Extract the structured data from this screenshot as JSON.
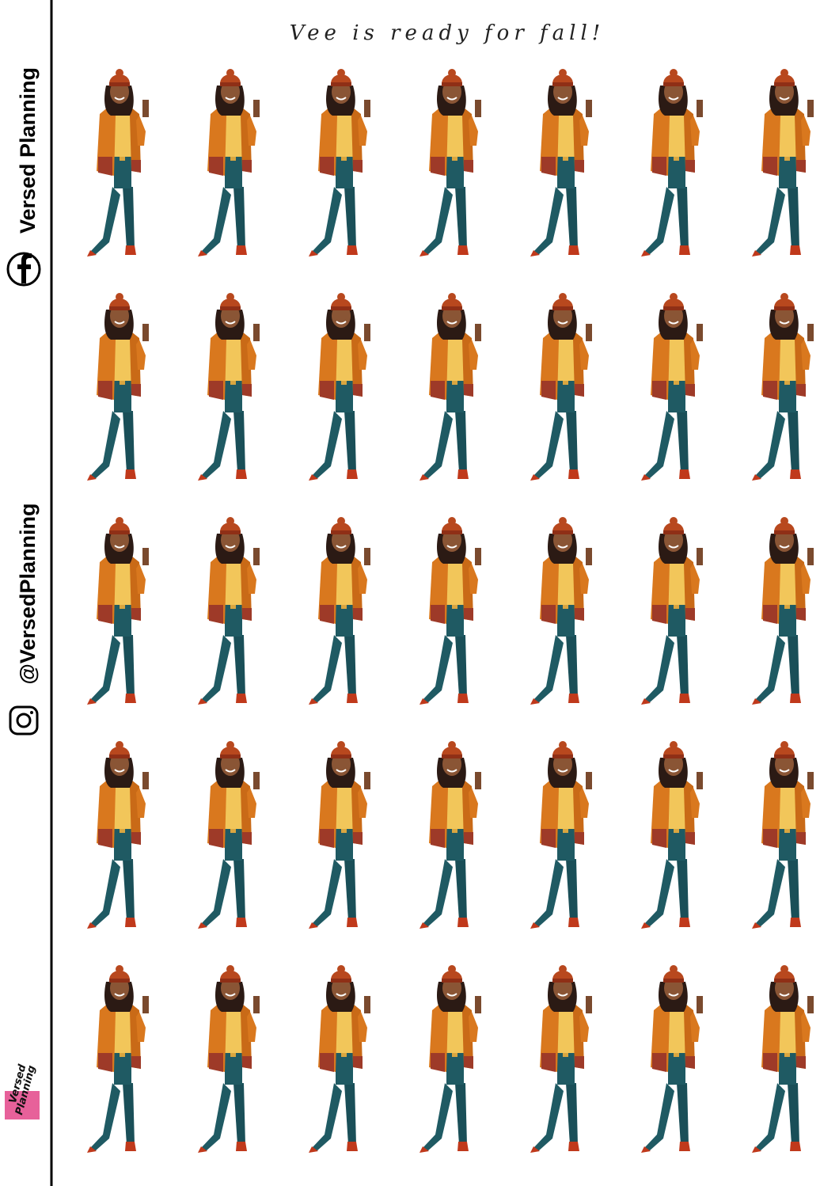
{
  "title": "Vee is ready for fall!",
  "sidebar": {
    "brand": "Versed Planning",
    "handle": "@VersedPlanning"
  },
  "logo": {
    "line1": "Versed",
    "line2": "Planning"
  }
}
